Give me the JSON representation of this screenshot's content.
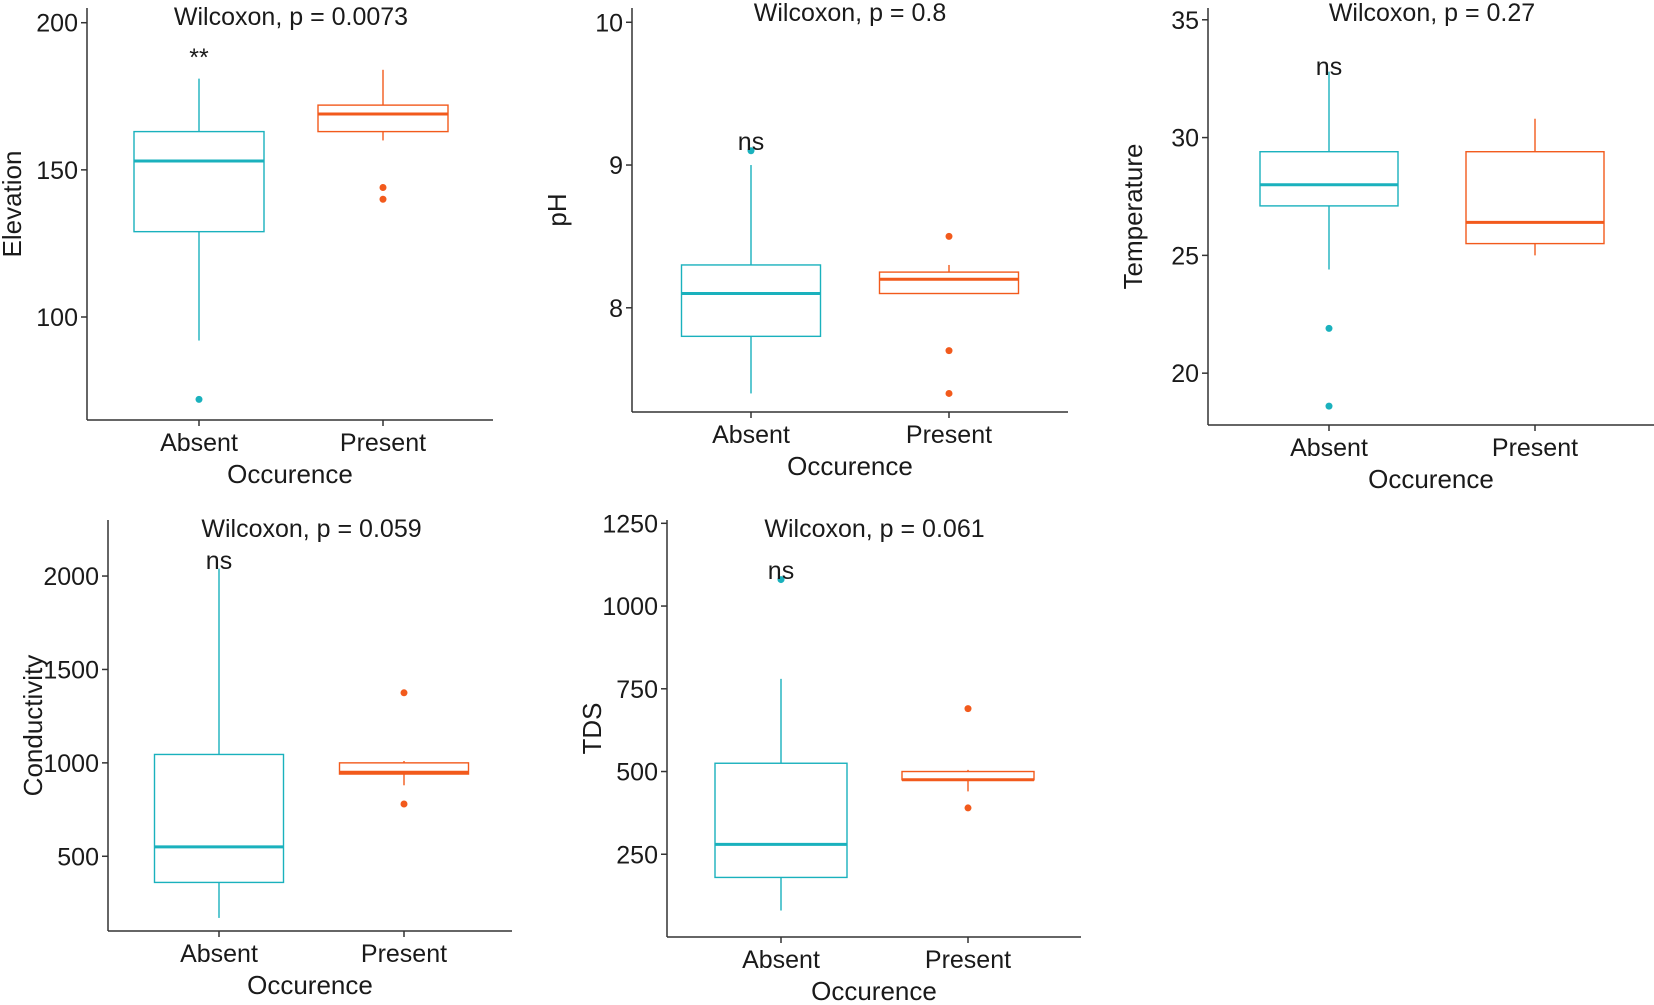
{
  "colors": {
    "absent": "#1ab1bd",
    "present": "#f25a1c",
    "axis": "#333333"
  },
  "chart_data": [
    {
      "type": "boxplot",
      "title": "Wilcoxon, p = 0.0073",
      "significance": "**",
      "xlabel": "Occurence",
      "ylabel": "Elevation",
      "categories": [
        "Absent",
        "Present"
      ],
      "ylim": [
        65,
        205
      ],
      "yticks": [
        100,
        150,
        200
      ],
      "boxes": [
        {
          "q1": 129,
          "median": 153,
          "q3": 163,
          "whisker_low": 92,
          "whisker_high": 181,
          "outliers": [
            72
          ]
        },
        {
          "q1": 163,
          "median": 169,
          "q3": 172,
          "whisker_low": 160,
          "whisker_high": 184,
          "outliers": [
            144,
            140
          ]
        }
      ]
    },
    {
      "type": "boxplot",
      "title": "Wilcoxon, p = 0.8",
      "significance": "ns",
      "xlabel": "Occurence",
      "ylabel": "pH",
      "categories": [
        "Absent",
        "Present"
      ],
      "ylim": [
        7.27,
        10.1
      ],
      "yticks": [
        8,
        9,
        10
      ],
      "boxes": [
        {
          "q1": 7.8,
          "median": 8.1,
          "q3": 8.3,
          "whisker_low": 7.4,
          "whisker_high": 9.0,
          "outliers": [
            9.1
          ]
        },
        {
          "q1": 8.1,
          "median": 8.2,
          "q3": 8.25,
          "whisker_low": 8.1,
          "whisker_high": 8.3,
          "outliers": [
            8.5,
            7.7,
            7.4
          ]
        }
      ]
    },
    {
      "type": "boxplot",
      "title": "Wilcoxon, p = 0.27",
      "significance": "ns",
      "xlabel": "Occurence",
      "ylabel": "Temperature",
      "categories": [
        "Absent",
        "Present"
      ],
      "ylim": [
        17.8,
        35.5
      ],
      "yticks": [
        20,
        25,
        30,
        35
      ],
      "boxes": [
        {
          "q1": 27.1,
          "median": 28.0,
          "q3": 29.4,
          "whisker_low": 24.4,
          "whisker_high": 32.8,
          "outliers": [
            21.9,
            18.6
          ]
        },
        {
          "q1": 25.5,
          "median": 26.4,
          "q3": 29.4,
          "whisker_low": 25.0,
          "whisker_high": 30.8,
          "outliers": []
        }
      ]
    },
    {
      "type": "boxplot",
      "title": "Wilcoxon, p = 0.059",
      "significance": "ns",
      "xlabel": "Occurence",
      "ylabel": "Conductivity",
      "categories": [
        "Absent",
        "Present"
      ],
      "ylim": [
        100,
        2300
      ],
      "yticks": [
        500,
        1000,
        1500,
        2000
      ],
      "boxes": [
        {
          "q1": 360,
          "median": 550,
          "q3": 1045,
          "whisker_low": 170,
          "whisker_high": 2040,
          "outliers": []
        },
        {
          "q1": 940,
          "median": 950,
          "q3": 1000,
          "whisker_low": 880,
          "whisker_high": 1010,
          "outliers": [
            1375,
            780
          ]
        }
      ]
    },
    {
      "type": "boxplot",
      "title": "Wilcoxon, p = 0.061",
      "significance": "ns",
      "xlabel": "Occurence",
      "ylabel": "TDS",
      "categories": [
        "Absent",
        "Present"
      ],
      "ylim": [
        0,
        1260
      ],
      "yticks": [
        250,
        500,
        750,
        1000,
        1250
      ],
      "boxes": [
        {
          "q1": 180,
          "median": 280,
          "q3": 525,
          "whisker_low": 80,
          "whisker_high": 780,
          "outliers": [
            1080
          ]
        },
        {
          "q1": 475,
          "median": 475,
          "q3": 500,
          "whisker_low": 440,
          "whisker_high": 505,
          "outliers": [
            690,
            390
          ]
        }
      ]
    }
  ]
}
